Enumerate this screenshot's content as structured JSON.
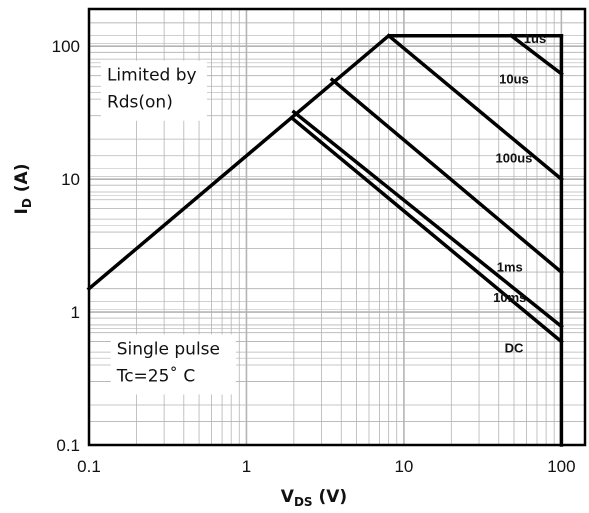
{
  "chart_data": {
    "type": "line",
    "title": "",
    "xlabel": {
      "main": "V",
      "sub": "DS",
      "unit": " (V)"
    },
    "ylabel": {
      "main": "I",
      "sub": "D",
      "unit": " (A)"
    },
    "xscale": "log",
    "yscale": "log",
    "xlim": [
      0.1,
      100
    ],
    "ylim": [
      0.1,
      100
    ],
    "xticks": [
      {
        "value": 0.1,
        "label": "0.1"
      },
      {
        "value": 1,
        "label": "1"
      },
      {
        "value": 10,
        "label": "10"
      },
      {
        "value": 100,
        "label": "100"
      }
    ],
    "yticks": [
      {
        "value": 0.1,
        "label": "0.1"
      },
      {
        "value": 1,
        "label": "1"
      },
      {
        "value": 10,
        "label": "10"
      },
      {
        "value": 100,
        "label": "100"
      }
    ],
    "grid": true,
    "line_color": "#000000",
    "grid_color": "#b4b4b4",
    "series": [
      {
        "name": "1us",
        "x": [
          0.1,
          8,
          48,
          100
        ],
        "y": [
          1.5,
          120,
          120,
          120
        ]
      },
      {
        "name": "10us",
        "x": [
          48,
          100
        ],
        "y": [
          120,
          62
        ]
      },
      {
        "name": "100us",
        "x": [
          8,
          100
        ],
        "y": [
          120,
          10
        ]
      },
      {
        "name": "1ms",
        "x": [
          3.5,
          100
        ],
        "y": [
          56,
          2
        ]
      },
      {
        "name": "10ms",
        "x": [
          2,
          100
        ],
        "y": [
          32,
          0.78
        ]
      },
      {
        "name": "DC",
        "x": [
          2,
          100
        ],
        "y": [
          28,
          0.6
        ]
      },
      {
        "name": "",
        "x": [
          100,
          100
        ],
        "y": [
          0.1,
          120
        ]
      }
    ],
    "curve_labels": [
      {
        "text": "1us",
        "x": 68,
        "y": 115
      },
      {
        "text": "10us",
        "x": 50,
        "y": 57
      },
      {
        "text": "100us",
        "x": 50,
        "y": 14.5
      },
      {
        "text": "1ms",
        "x": 47,
        "y": 2.2
      },
      {
        "text": "10ms",
        "x": 47,
        "y": 1.3
      },
      {
        "text": "DC",
        "x": 50,
        "y": 0.54
      }
    ],
    "annotations": [
      {
        "lines": [
          "Limited by",
          "Rds(on)"
        ],
        "x": 0.13,
        "y": 55
      },
      {
        "lines": [
          "Single pulse",
          "Tc=25˚ C"
        ],
        "x": 0.15,
        "y": 0.48
      }
    ]
  }
}
